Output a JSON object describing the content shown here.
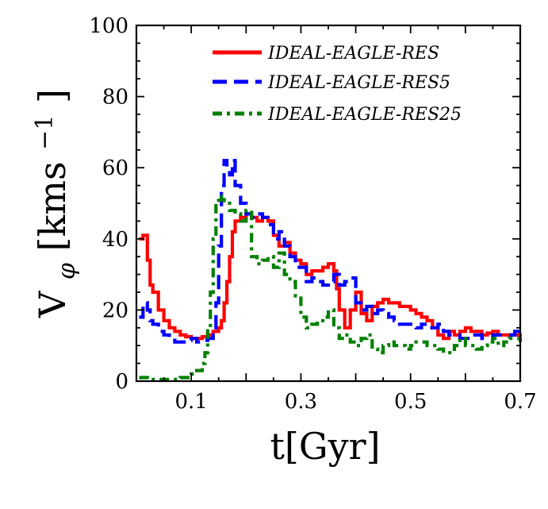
{
  "chart_data": {
    "type": "line",
    "title": "",
    "xlabel": "t[Gyr]",
    "ylabel_main": "V",
    "ylabel_sub": "φ",
    "ylabel_unit": "[kms",
    "ylabel_exp": "−1",
    "ylabel_close": "]",
    "xlim": [
      0.0,
      0.7
    ],
    "ylim": [
      0,
      100
    ],
    "xticks": [
      0.1,
      0.3,
      0.5,
      0.7
    ],
    "xtick_labels": [
      "0.1",
      "0.3",
      "0.5",
      "0.7"
    ],
    "yticks": [
      0,
      20,
      40,
      60,
      80,
      100
    ],
    "ytick_labels": [
      "0",
      "20",
      "40",
      "60",
      "80",
      "100"
    ],
    "legend_position": "top-right",
    "series": [
      {
        "name": "IDEAL-EAGLE-RES",
        "color": "#ff0000",
        "style": "solid",
        "x": [
          0.005,
          0.012,
          0.02,
          0.025,
          0.03,
          0.04,
          0.05,
          0.06,
          0.07,
          0.08,
          0.09,
          0.1,
          0.11,
          0.12,
          0.13,
          0.14,
          0.15,
          0.155,
          0.16,
          0.165,
          0.17,
          0.175,
          0.18,
          0.19,
          0.2,
          0.21,
          0.22,
          0.23,
          0.24,
          0.25,
          0.26,
          0.27,
          0.28,
          0.29,
          0.3,
          0.31,
          0.32,
          0.33,
          0.34,
          0.35,
          0.36,
          0.365,
          0.37,
          0.38,
          0.39,
          0.4,
          0.41,
          0.42,
          0.43,
          0.44,
          0.45,
          0.46,
          0.47,
          0.48,
          0.49,
          0.5,
          0.51,
          0.52,
          0.53,
          0.54,
          0.55,
          0.56,
          0.57,
          0.58,
          0.59,
          0.6,
          0.61,
          0.62,
          0.63,
          0.64,
          0.65,
          0.66,
          0.67,
          0.68,
          0.69,
          0.7
        ],
        "y": [
          40,
          41,
          34,
          27,
          25,
          20,
          17,
          15,
          14,
          13,
          12.5,
          12,
          12,
          12.5,
          13,
          14,
          15,
          17,
          22,
          28,
          35,
          42,
          45,
          46,
          47,
          46,
          45,
          46,
          45,
          41,
          38,
          39,
          36,
          34,
          33,
          30,
          31,
          31,
          32,
          33,
          31,
          26,
          20,
          15,
          20,
          25,
          19,
          17,
          21,
          22,
          23,
          22,
          22,
          21,
          21,
          20,
          19,
          18,
          17,
          15,
          13,
          12,
          14,
          13,
          14,
          15,
          14,
          14,
          13,
          13.5,
          14,
          13,
          13,
          13,
          13,
          13.5
        ]
      },
      {
        "name": "IDEAL-EAGLE-RES5",
        "color": "#0000ff",
        "style": "dashed",
        "x": [
          0.005,
          0.012,
          0.02,
          0.025,
          0.03,
          0.04,
          0.05,
          0.06,
          0.07,
          0.08,
          0.09,
          0.1,
          0.11,
          0.12,
          0.13,
          0.14,
          0.145,
          0.15,
          0.155,
          0.16,
          0.165,
          0.17,
          0.175,
          0.18,
          0.19,
          0.2,
          0.21,
          0.22,
          0.23,
          0.24,
          0.25,
          0.26,
          0.27,
          0.28,
          0.29,
          0.3,
          0.31,
          0.32,
          0.33,
          0.34,
          0.35,
          0.36,
          0.37,
          0.38,
          0.39,
          0.4,
          0.41,
          0.42,
          0.43,
          0.44,
          0.45,
          0.46,
          0.47,
          0.48,
          0.49,
          0.5,
          0.51,
          0.52,
          0.53,
          0.54,
          0.55,
          0.56,
          0.57,
          0.58,
          0.59,
          0.6,
          0.61,
          0.62,
          0.63,
          0.64,
          0.65,
          0.66,
          0.67,
          0.68,
          0.69,
          0.7
        ],
        "y": [
          18,
          22,
          20,
          17,
          16,
          14,
          13,
          12,
          11,
          11,
          11.5,
          12,
          11,
          11.5,
          12,
          13,
          22,
          38,
          55,
          62,
          60,
          58,
          62,
          55,
          50,
          47,
          46,
          47,
          46,
          44,
          40,
          42,
          38,
          35,
          32,
          32,
          28,
          29,
          28,
          27,
          28,
          30,
          27,
          28,
          29,
          22,
          20,
          21,
          19,
          20,
          19,
          18,
          17,
          16,
          16,
          16,
          15,
          16,
          15,
          15,
          16,
          14,
          13,
          13,
          12,
          12,
          13,
          13,
          12,
          12,
          13,
          13,
          13,
          13,
          14,
          14
        ]
      },
      {
        "name": "IDEAL-EAGLE-RES25",
        "color": "#008000",
        "style": "dashdot",
        "x": [
          0.005,
          0.02,
          0.04,
          0.06,
          0.08,
          0.1,
          0.11,
          0.12,
          0.125,
          0.13,
          0.135,
          0.14,
          0.145,
          0.15,
          0.155,
          0.16,
          0.17,
          0.18,
          0.19,
          0.2,
          0.21,
          0.22,
          0.23,
          0.24,
          0.25,
          0.26,
          0.27,
          0.28,
          0.29,
          0.3,
          0.31,
          0.32,
          0.33,
          0.34,
          0.35,
          0.36,
          0.37,
          0.38,
          0.39,
          0.4,
          0.41,
          0.42,
          0.43,
          0.44,
          0.45,
          0.46,
          0.47,
          0.48,
          0.49,
          0.5,
          0.51,
          0.52,
          0.53,
          0.54,
          0.55,
          0.56,
          0.57,
          0.58,
          0.59,
          0.6,
          0.61,
          0.62,
          0.63,
          0.64,
          0.65,
          0.66,
          0.67,
          0.68,
          0.69,
          0.7
        ],
        "y": [
          1,
          0.5,
          0.5,
          0.5,
          1,
          2,
          3,
          5,
          8,
          15,
          25,
          40,
          50,
          52,
          51,
          50,
          48,
          47,
          45,
          48,
          35,
          33,
          34,
          35,
          32,
          36,
          30,
          28,
          24,
          18,
          15,
          16,
          17,
          18,
          20,
          15,
          12,
          13,
          11,
          10,
          12,
          13,
          9,
          8,
          10,
          11,
          10,
          10,
          9,
          10,
          11,
          11,
          10,
          10,
          9,
          8,
          8,
          10,
          12,
          10,
          10,
          9,
          10,
          11,
          12,
          10,
          11,
          12,
          12,
          11
        ]
      }
    ]
  }
}
